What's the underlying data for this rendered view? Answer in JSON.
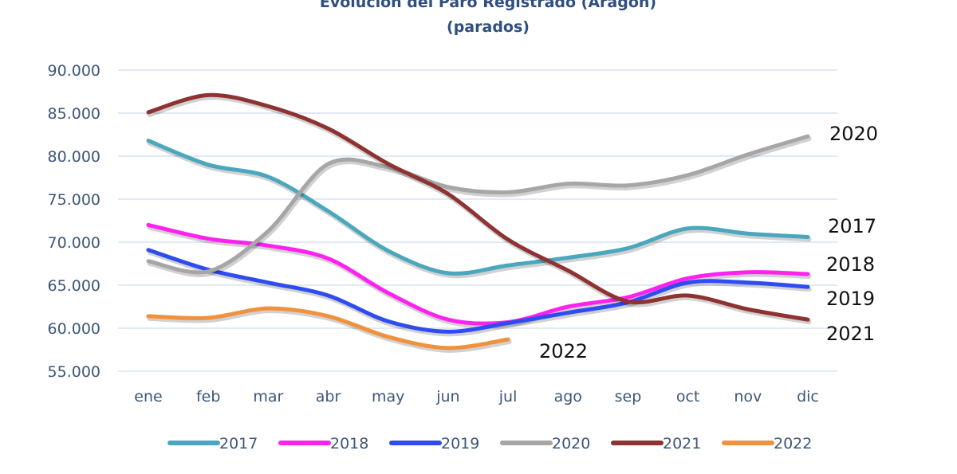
{
  "chart_data": {
    "type": "line",
    "title": "Evolución del Paro Registrado (Aragón)",
    "subtitle": "(parados)",
    "xlabel": "",
    "ylabel": "",
    "categories": [
      "ene",
      "feb",
      "mar",
      "abr",
      "may",
      "jun",
      "jul",
      "ago",
      "sep",
      "oct",
      "nov",
      "dic"
    ],
    "ylim": [
      55000,
      90000
    ],
    "yticks": [
      90000,
      85000,
      80000,
      75000,
      70000,
      65000,
      60000,
      55000
    ],
    "ytick_labels": [
      "90.000",
      "85.000",
      "80.000",
      "75.000",
      "70.000",
      "65.000",
      "60.000",
      "55.000"
    ],
    "grid": true,
    "legend_position": "bottom",
    "series": [
      {
        "name": "2017",
        "color": "#4aa7bd",
        "end_label": "2017",
        "values": [
          81800,
          79000,
          77600,
          73600,
          69000,
          66400,
          67300,
          68200,
          69300,
          71600,
          71000,
          70600
        ]
      },
      {
        "name": "2018",
        "color": "#ff22ee",
        "end_label": "2018",
        "values": [
          72000,
          70400,
          69600,
          68100,
          64100,
          61000,
          60700,
          62500,
          63600,
          65800,
          66500,
          66300
        ]
      },
      {
        "name": "2019",
        "color": "#2f4cf0",
        "end_label": "2019",
        "values": [
          69100,
          66800,
          65300,
          63800,
          60800,
          59600,
          60600,
          61800,
          63000,
          65300,
          65300,
          64800
        ]
      },
      {
        "name": "2020",
        "color": "#a6a6a6",
        "end_label": "2020",
        "values": [
          67800,
          66600,
          71300,
          79100,
          78700,
          76400,
          75800,
          76800,
          76600,
          77800,
          80200,
          82300
        ]
      },
      {
        "name": "2021",
        "color": "#8e3232",
        "end_label": "2021",
        "values": [
          85100,
          87100,
          85800,
          83200,
          79100,
          75600,
          70300,
          66700,
          63100,
          63800,
          62200,
          61000
        ]
      },
      {
        "name": "2022",
        "color": "#f0913d",
        "end_label": "2022",
        "values": [
          61400,
          61200,
          62300,
          61400,
          59000,
          57700,
          58700
        ]
      }
    ]
  }
}
